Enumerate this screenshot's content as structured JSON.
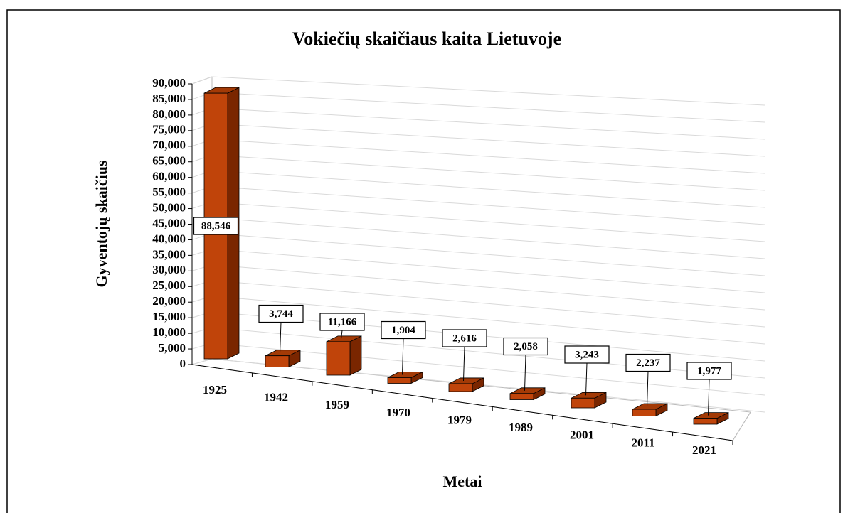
{
  "chart_data": {
    "type": "bar3d",
    "title": "Vokiečių skaičiaus kaita Lietuvoje",
    "x_label": "Metai",
    "y_label": "Gyventojų skaičius",
    "categories": [
      "1925",
      "1942",
      "1959",
      "1970",
      "1979",
      "1989",
      "2001",
      "2011",
      "2021"
    ],
    "values": [
      88546,
      3744,
      11166,
      1904,
      2616,
      2058,
      3243,
      2237,
      1977
    ],
    "value_labels": [
      "88,546",
      "3,744",
      "11,166",
      "1,904",
      "2,616",
      "2,058",
      "3,243",
      "2,237",
      "1,977"
    ],
    "color": "#c0440a",
    "ylim": [
      0,
      90000
    ],
    "yticks": [
      0,
      {
        "value": 5000,
        "label": "5,000"
      },
      {
        "value": 10000,
        "label": "10,000"
      },
      {
        "value": 15000,
        "label": "15,000"
      },
      {
        "value": 20000,
        "label": "20,000"
      },
      {
        "value": 25000,
        "label": "25,000"
      },
      {
        "value": 30000,
        "label": "30,000"
      },
      {
        "value": 35000,
        "label": "35,000"
      },
      {
        "value": 40000,
        "label": "40,000"
      },
      {
        "value": 45000,
        "label": "45,000"
      },
      {
        "value": 50000,
        "label": "50,000"
      },
      {
        "value": 55000,
        "label": "55,000"
      },
      {
        "value": 60000,
        "label": "60,000"
      },
      {
        "value": 65000,
        "label": "65,000"
      },
      {
        "value": 70000,
        "label": "70,000"
      },
      {
        "value": 75000,
        "label": "75,000"
      },
      {
        "value": 80000,
        "label": "80,000"
      },
      {
        "value": 85000,
        "label": "85,000"
      },
      {
        "value": 90000,
        "label": "90,000"
      }
    ],
    "grid": true
  }
}
